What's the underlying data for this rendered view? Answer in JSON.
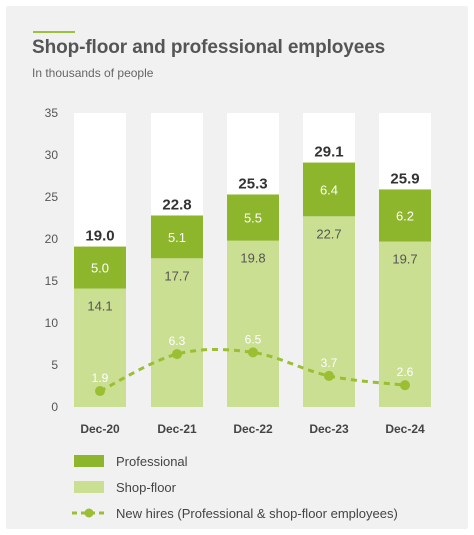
{
  "header": {
    "title": "Shop-floor and professional employees",
    "subtitle": "In thousands of people"
  },
  "colors": {
    "professional": "#8db62c",
    "shop_floor": "#cadf92",
    "new_hires": "#9bbe33",
    "bar_background": "#ffffff"
  },
  "chart_data": {
    "type": "bar",
    "stacked": true,
    "categories": [
      "Dec-20",
      "Dec-21",
      "Dec-22",
      "Dec-23",
      "Dec-24"
    ],
    "ylim": [
      0,
      35
    ],
    "yticks": [
      0,
      5,
      10,
      15,
      20,
      25,
      30,
      35
    ],
    "series": [
      {
        "name": "Shop-floor",
        "values": [
          14.1,
          17.7,
          19.8,
          22.7,
          19.7
        ]
      },
      {
        "name": "Professional",
        "values": [
          5.0,
          5.1,
          5.5,
          6.4,
          6.2
        ]
      }
    ],
    "totals": [
      19.0,
      22.8,
      25.3,
      29.1,
      25.9
    ],
    "line_series": {
      "name": "New hires (Professional & shop-floor employees)",
      "values": [
        1.9,
        6.3,
        6.5,
        3.7,
        2.6
      ],
      "style": "dashed"
    },
    "legend": [
      "Professional",
      "Shop-floor",
      "New hires (Professional & shop-floor employees)"
    ],
    "legend_position": "bottom",
    "grid": false
  }
}
